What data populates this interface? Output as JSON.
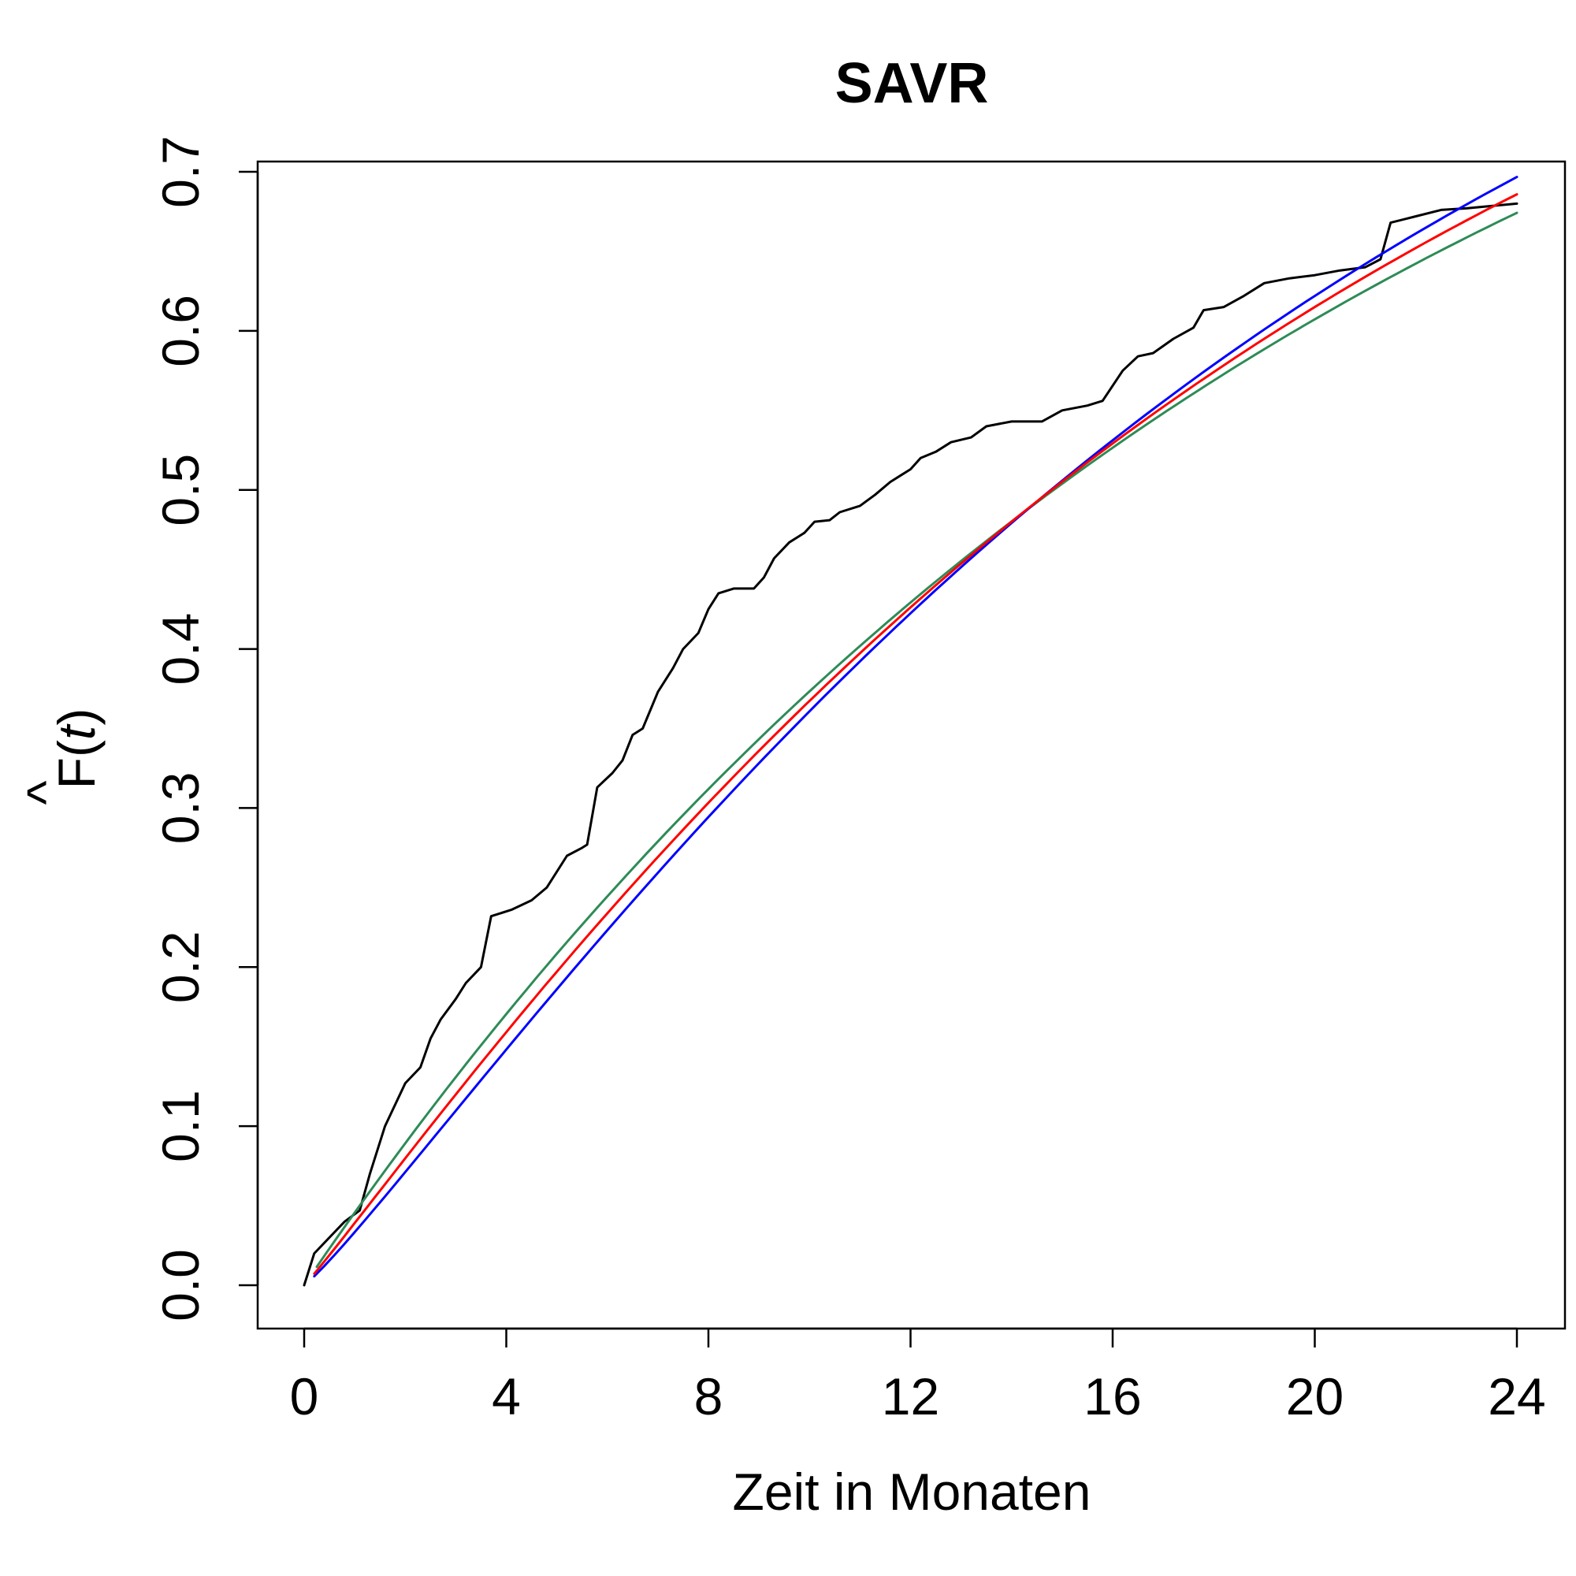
{
  "chart_data": {
    "type": "line",
    "title": "SAVR",
    "xlabel": "Zeit in Monaten",
    "ylabel": {
      "main": "F",
      "hat": "^",
      "open": "(",
      "var": "t",
      "close": ")"
    },
    "xlim": [
      0,
      24
    ],
    "ylim": [
      0,
      0.7
    ],
    "x_ticks": [
      0,
      4,
      8,
      12,
      16,
      20,
      24
    ],
    "x_tick_labels": [
      "0",
      "4",
      "8",
      "12",
      "16",
      "20",
      "24"
    ],
    "y_ticks": [
      0,
      0.1,
      0.2,
      0.3,
      0.4,
      0.5,
      0.6,
      0.7
    ],
    "y_tick_labels": [
      "0.0",
      "0.1",
      "0.2",
      "0.3",
      "0.4",
      "0.5",
      "0.6",
      "0.7"
    ],
    "grid": false,
    "legend": "none",
    "series": [
      {
        "color": "#000000",
        "kind": "empirical",
        "points": [
          [
            0,
            0
          ],
          [
            0.2,
            0.02
          ],
          [
            0.5,
            0.03
          ],
          [
            0.8,
            0.04
          ],
          [
            1.1,
            0.047
          ],
          [
            1.3,
            0.07
          ],
          [
            1.6,
            0.1
          ],
          [
            2.0,
            0.127
          ],
          [
            2.3,
            0.137
          ],
          [
            2.5,
            0.155
          ],
          [
            2.7,
            0.167
          ],
          [
            3.0,
            0.18
          ],
          [
            3.2,
            0.19
          ],
          [
            3.5,
            0.2
          ],
          [
            3.7,
            0.232
          ],
          [
            4.1,
            0.236
          ],
          [
            4.5,
            0.242
          ],
          [
            4.8,
            0.25
          ],
          [
            5.2,
            0.27
          ],
          [
            5.5,
            0.275
          ],
          [
            5.6,
            0.277
          ],
          [
            5.8,
            0.313
          ],
          [
            6.1,
            0.322
          ],
          [
            6.3,
            0.33
          ],
          [
            6.5,
            0.346
          ],
          [
            6.7,
            0.35
          ],
          [
            7.0,
            0.373
          ],
          [
            7.3,
            0.388
          ],
          [
            7.5,
            0.4
          ],
          [
            7.8,
            0.41
          ],
          [
            8.0,
            0.425
          ],
          [
            8.2,
            0.435
          ],
          [
            8.5,
            0.438
          ],
          [
            8.9,
            0.438
          ],
          [
            9.1,
            0.445
          ],
          [
            9.3,
            0.457
          ],
          [
            9.6,
            0.467
          ],
          [
            9.9,
            0.473
          ],
          [
            10.1,
            0.48
          ],
          [
            10.4,
            0.481
          ],
          [
            10.6,
            0.486
          ],
          [
            11.0,
            0.49
          ],
          [
            11.3,
            0.497
          ],
          [
            11.6,
            0.505
          ],
          [
            12.0,
            0.513
          ],
          [
            12.2,
            0.52
          ],
          [
            12.5,
            0.524
          ],
          [
            12.8,
            0.53
          ],
          [
            13.2,
            0.533
          ],
          [
            13.5,
            0.54
          ],
          [
            14.0,
            0.543
          ],
          [
            14.6,
            0.543
          ],
          [
            15.0,
            0.55
          ],
          [
            15.5,
            0.553
          ],
          [
            15.8,
            0.556
          ],
          [
            16.2,
            0.575
          ],
          [
            16.5,
            0.584
          ],
          [
            16.8,
            0.586
          ],
          [
            17.2,
            0.595
          ],
          [
            17.6,
            0.602
          ],
          [
            17.8,
            0.613
          ],
          [
            18.2,
            0.615
          ],
          [
            18.6,
            0.622
          ],
          [
            19.0,
            0.63
          ],
          [
            19.5,
            0.633
          ],
          [
            20.0,
            0.635
          ],
          [
            20.5,
            0.638
          ],
          [
            21.0,
            0.64
          ],
          [
            21.3,
            0.645
          ],
          [
            21.5,
            0.668
          ],
          [
            22.0,
            0.672
          ],
          [
            22.5,
            0.676
          ],
          [
            23.0,
            0.677
          ],
          [
            24.0,
            0.68
          ]
        ]
      },
      {
        "color": "#2e8b57",
        "kind": "fit",
        "shape": 1.0,
        "scale": 21.4,
        "x_start": 0.25,
        "x_end": 24
      },
      {
        "color": "#0000ff",
        "kind": "fit",
        "shape": 1.12,
        "scale": 20.5,
        "x_start": 0.2,
        "x_end": 24
      },
      {
        "color": "#ff0000",
        "kind": "fit",
        "shape": 1.06,
        "scale": 20.9,
        "x_start": 0.2,
        "x_end": 24
      }
    ]
  }
}
